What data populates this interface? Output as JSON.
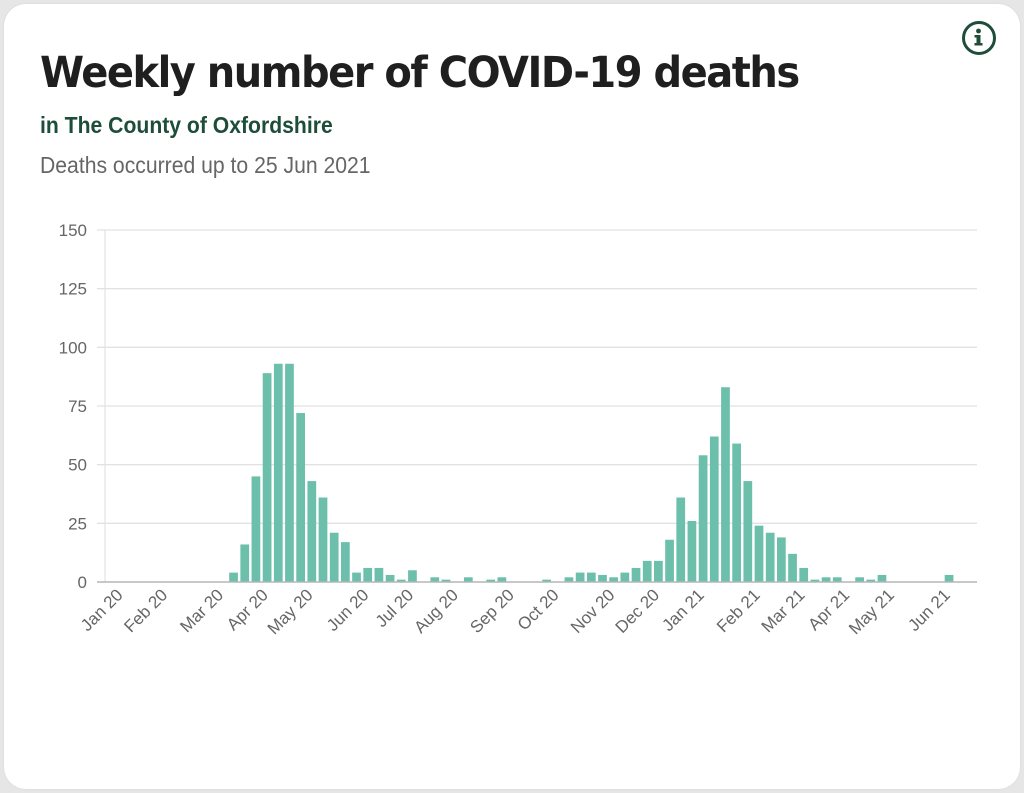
{
  "header": {
    "title": "Weekly number of COVID-19 deaths",
    "subtitle": "in The County of Oxfordshire",
    "note": "Deaths occurred up to 25 Jun 2021",
    "info_icon": "info-icon"
  },
  "colors": {
    "bar": "#6bbfab",
    "accent": "#1e4d3a",
    "grid": "#e2e2e2",
    "axis": "#b5b5b5"
  },
  "chart_data": {
    "type": "bar",
    "title": "Weekly number of COVID-19 deaths",
    "subtitle": "in The County of Oxfordshire",
    "xlabel": "",
    "ylabel": "",
    "ylim": [
      0,
      150
    ],
    "yticks": [
      0,
      25,
      50,
      75,
      100,
      125,
      150
    ],
    "grid": true,
    "legend": "none",
    "xtick_labels": [
      {
        "label": "Jan 20",
        "index": 1
      },
      {
        "label": "Feb 20",
        "index": 5
      },
      {
        "label": "Mar 20",
        "index": 10
      },
      {
        "label": "Apr 20",
        "index": 14
      },
      {
        "label": "May 20",
        "index": 18
      },
      {
        "label": "Jun 20",
        "index": 23
      },
      {
        "label": "Jul 20",
        "index": 27
      },
      {
        "label": "Aug 20",
        "index": 31
      },
      {
        "label": "Sep 20",
        "index": 36
      },
      {
        "label": "Oct 20",
        "index": 40
      },
      {
        "label": "Nov 20",
        "index": 45
      },
      {
        "label": "Dec 20",
        "index": 49
      },
      {
        "label": "Jan 21",
        "index": 53
      },
      {
        "label": "Feb 21",
        "index": 58
      },
      {
        "label": "Mar 21",
        "index": 62
      },
      {
        "label": "Apr 21",
        "index": 66
      },
      {
        "label": "May 21",
        "index": 70
      },
      {
        "label": "Jun 21",
        "index": 75
      }
    ],
    "values": [
      0,
      0,
      0,
      0,
      0,
      0,
      0,
      0,
      0,
      0,
      0,
      4,
      16,
      45,
      89,
      93,
      93,
      72,
      43,
      36,
      21,
      17,
      4,
      6,
      6,
      3,
      1,
      5,
      0,
      2,
      1,
      0,
      2,
      0,
      1,
      2,
      0,
      0,
      0,
      1,
      0,
      2,
      4,
      4,
      3,
      2,
      4,
      6,
      9,
      9,
      18,
      36,
      26,
      54,
      62,
      83,
      59,
      43,
      24,
      21,
      19,
      12,
      6,
      1,
      2,
      2,
      0,
      2,
      1,
      3,
      0,
      0,
      0,
      0,
      0,
      3,
      0,
      0
    ]
  }
}
